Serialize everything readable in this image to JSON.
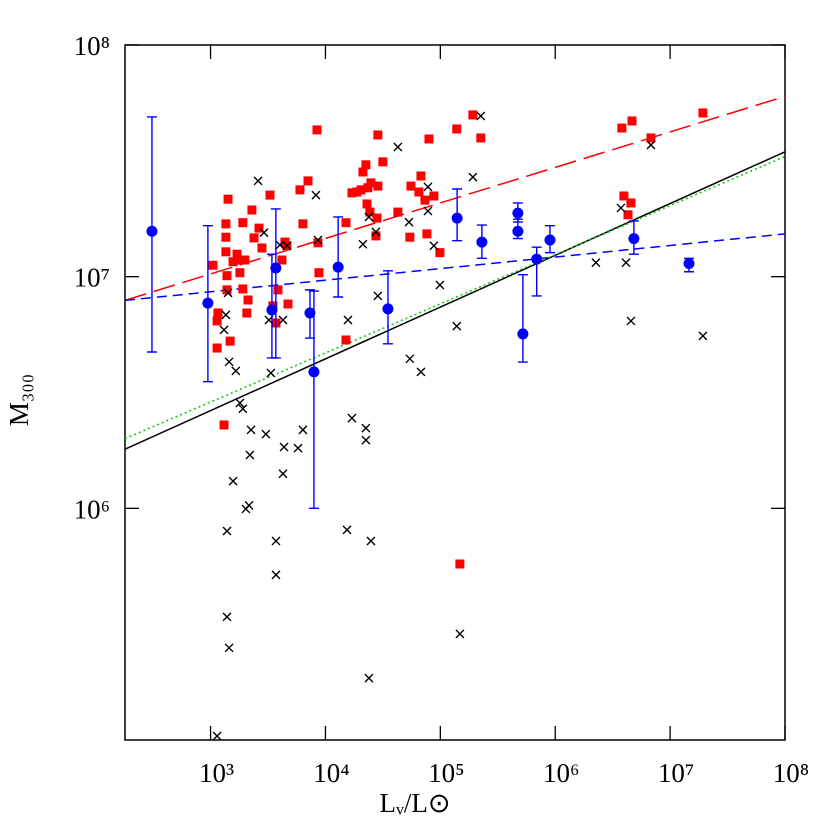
{
  "chart_data": {
    "type": "scatter",
    "x_label": "Lᵥ/L⊙",
    "y_label": "M₃₀₀",
    "log_x": true,
    "log_y": true,
    "xlim": [
      180,
      100000000
    ],
    "ylim": [
      100000,
      100000000
    ],
    "xticks": [
      {
        "value": 1000,
        "label": "10³"
      },
      {
        "value": 10000,
        "label": "10⁴"
      },
      {
        "value": 100000,
        "label": "10⁵"
      },
      {
        "value": 1000000,
        "label": "10⁶"
      },
      {
        "value": 10000000,
        "label": "10⁷"
      },
      {
        "value": 100000000,
        "label": "10⁸"
      }
    ],
    "yticks": [
      {
        "value": 1000000,
        "label": "10⁶"
      },
      {
        "value": 10000000,
        "label": "10⁷"
      },
      {
        "value": 100000000,
        "label": "10⁸"
      }
    ],
    "series": [
      {
        "marker": "square",
        "color": "#ff0000",
        "x": [
          1050,
          1160,
          1140,
          1140,
          1360,
          1390,
          1420,
          1360,
          1360,
          1390,
          1480,
          1570,
          1700,
          1800,
          1800,
          1910,
          1910,
          1990,
          2070,
          2120,
          2290,
          2390,
          2640,
          2800,
          3290,
          3490,
          3710,
          3860,
          4180,
          4440,
          4720,
          4620,
          6000,
          6370,
          7050,
          8610,
          8440,
          8780,
          15100,
          15100,
          17000,
          18800,
          20400,
          22500,
          21200,
          23400,
          23000,
          24400,
          24900,
          27500,
          28600,
          28100,
          31600,
          28600,
          42700,
          55500,
          54300,
          65100,
          67800,
          79600,
          73500,
          76400,
          87900,
          99100,
          139000,
          192000,
          225000,
          148000,
          3800000,
          3960000,
          4300000,
          4560000,
          4660000,
          6810000,
          19300000,
          1310
        ],
        "values": [
          11200000,
          6970000,
          6440000,
          4920000,
          12800000,
          10100000,
          21600000,
          16900000,
          14800000,
          8770000,
          5270000,
          11600000,
          12500000,
          10400000,
          11800000,
          8850000,
          17100000,
          11800000,
          6970000,
          7930000,
          19400000,
          14700000,
          16200000,
          13300000,
          22500000,
          7480000,
          6310000,
          8770000,
          11800000,
          14100000,
          7620000,
          13600000,
          23700000,
          16900000,
          25900000,
          14000000,
          43000000,
          10400000,
          17100000,
          5330000,
          23000000,
          23200000,
          23700000,
          30400000,
          28300000,
          24200000,
          20600000,
          19000000,
          25400000,
          15000000,
          24600000,
          17900000,
          31300000,
          40900000,
          19000000,
          24600000,
          14800000,
          23200000,
          27200000,
          39300000,
          21400000,
          15300000,
          22300000,
          12700000,
          43400000,
          49900000,
          39700000,
          575000,
          43800000,
          22300000,
          18500000,
          20800000,
          47000000,
          39700000,
          50900000,
          2290000
        ]
      },
      {
        "marker": "cross",
        "color": "#000000",
        "x": [
          1140,
          1310,
          1360,
          1420,
          1450,
          1390,
          1390,
          1450,
          1570,
          1660,
          1800,
          1910,
          2030,
          2160,
          2200,
          2250,
          2590,
          2920,
          3030,
          3220,
          3350,
          3710,
          3710,
          4020,
          4270,
          4360,
          4270,
          4620,
          5770,
          6370,
          8260,
          8610,
          15400,
          15700,
          17000,
          21200,
          22500,
          22500,
          23900,
          24900,
          23900,
          27500,
          28600,
          42700,
          54300,
          53300,
          67800,
          78000,
          78000,
          87900,
          99100,
          139000,
          148000,
          192000,
          225000,
          4130000,
          3730000,
          4560000,
          6810000,
          19300000,
          2260000
        ],
        "values": [
          104000,
          5890000,
          6840000,
          8510000,
          4290000,
          798000,
          340000,
          250000,
          1310000,
          3920000,
          2850000,
          2690000,
          994000,
          1030000,
          1700000,
          2180000,
          25900000,
          15500000,
          2090000,
          6500000,
          3840000,
          723000,
          516000,
          13700000,
          1410000,
          1840000,
          6500000,
          13600000,
          1820000,
          2180000,
          22500000,
          14400000,
          807000,
          6500000,
          2450000,
          13800000,
          2220000,
          1970000,
          185000,
          723000,
          18100000,
          15600000,
          8260000,
          36300000,
          4420000,
          17200000,
          3880000,
          24400000,
          19200000,
          13600000,
          9210000,
          6120000,
          287000,
          26900000,
          49400000,
          11500000,
          19800000,
          6440000,
          37000000,
          5550000,
          11500000
        ]
      },
      {
        "marker": "circle",
        "color": "#0000ff",
        "x": [
          309,
          948,
          3420,
          3700,
          7330,
          7940,
          12900,
          35000,
          140000,
          230000,
          473000,
          473000,
          523000,
          690000,
          900000,
          4840000,
          14600000
        ],
        "values": [
          15700000,
          7690000,
          7180000,
          10900000,
          6970000,
          3880000,
          11000000,
          7260000,
          17900000,
          14100000,
          18800000,
          15700000,
          5660000,
          11900000,
          14400000,
          14600000,
          11400000
        ],
        "lower": [
          4730000,
          3520000,
          4460000,
          4460000,
          5430000,
          1000000,
          8170000,
          5130000,
          14300000,
          12000000,
          17200000,
          14600000,
          4280000,
          8260000,
          12700000,
          12500000,
          10500000
        ],
        "upper": [
          48900000,
          16600000,
          12500000,
          19600000,
          8770000,
          8670000,
          18100000,
          10600000,
          23900000,
          16700000,
          20800000,
          17700000,
          10200000,
          13400000,
          16600000,
          17400000,
          12000000
        ]
      }
    ],
    "lines": [
      {
        "color": "#ff0000",
        "dash": "long",
        "x": [
          180,
          100000000
        ],
        "values": [
          7900000,
          60000000
        ]
      },
      {
        "color": "#0000ff",
        "dash": "short",
        "x": [
          180,
          100000000
        ],
        "values": [
          7900000,
          15300000
        ]
      },
      {
        "color": "#000000",
        "dash": "solid",
        "x": [
          180,
          100000000
        ],
        "values": [
          1800000,
          34600000
        ]
      },
      {
        "color": "#00cc00",
        "dash": "dotted",
        "x": [
          180,
          100000000
        ],
        "values": [
          2000000,
          33000000
        ]
      }
    ]
  }
}
